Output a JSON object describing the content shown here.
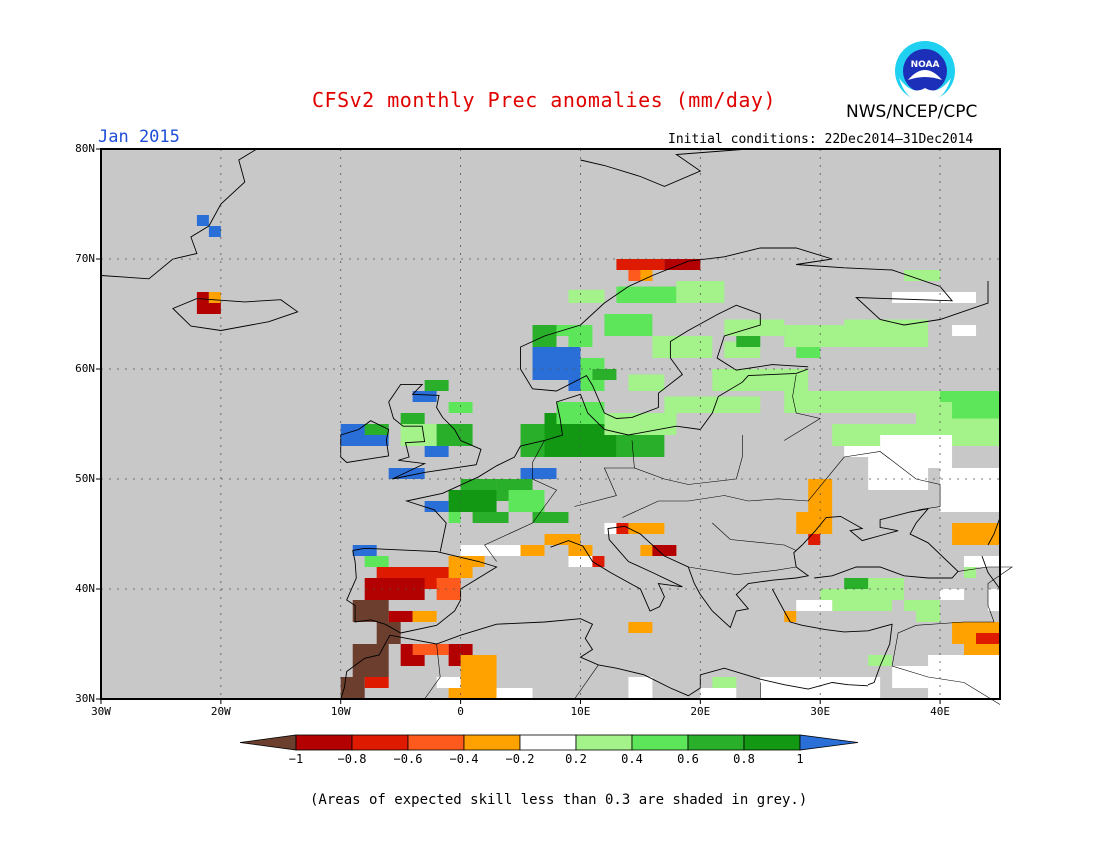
{
  "title": "CFSv2 monthly Prec anomalies (mm/day)",
  "period": "Jan 2015",
  "initial_conditions": "Initial conditions: 22Dec2014–31Dec2014",
  "agency": "NWS/NCEP/CPC",
  "logo_text": "NOAA",
  "footnote": "(Areas of expected skill less than 0.3 are shaded in grey.)",
  "map": {
    "lon_range": [
      -30,
      45
    ],
    "lat_range": [
      30,
      80
    ],
    "lat_labels": [
      "80N",
      "70N",
      "60N",
      "50N",
      "40N",
      "30N"
    ],
    "lon_labels": [
      "30W",
      "20W",
      "10W",
      "0",
      "10E",
      "20E",
      "30E",
      "40E"
    ],
    "background": "#c8c8c8"
  },
  "colorbar": {
    "tick_labels": [
      "−1",
      "−0.8",
      "−0.6",
      "−0.4",
      "−0.2",
      "0.2",
      "0.4",
      "0.6",
      "0.8",
      "1"
    ],
    "colors": [
      "#6b3e2e",
      "#b30000",
      "#de1a00",
      "#ff5a1e",
      "#ffa200",
      "#ffffff",
      "#a4f28a",
      "#5ee65a",
      "#2aaf2a",
      "#129812",
      "#2a6fd8"
    ]
  },
  "colors": {
    "brown": "#6b3e2e",
    "dark_red": "#b30000",
    "red": "#de1a00",
    "orange_red": "#ff5a1e",
    "orange": "#ffa200",
    "white": "#ffffff",
    "light_green": "#a4f28a",
    "green": "#5ee65a",
    "mid_green": "#2aaf2a",
    "dark_green": "#129812",
    "blue": "#2a6fd8",
    "grey": "#c8c8c8"
  }
}
